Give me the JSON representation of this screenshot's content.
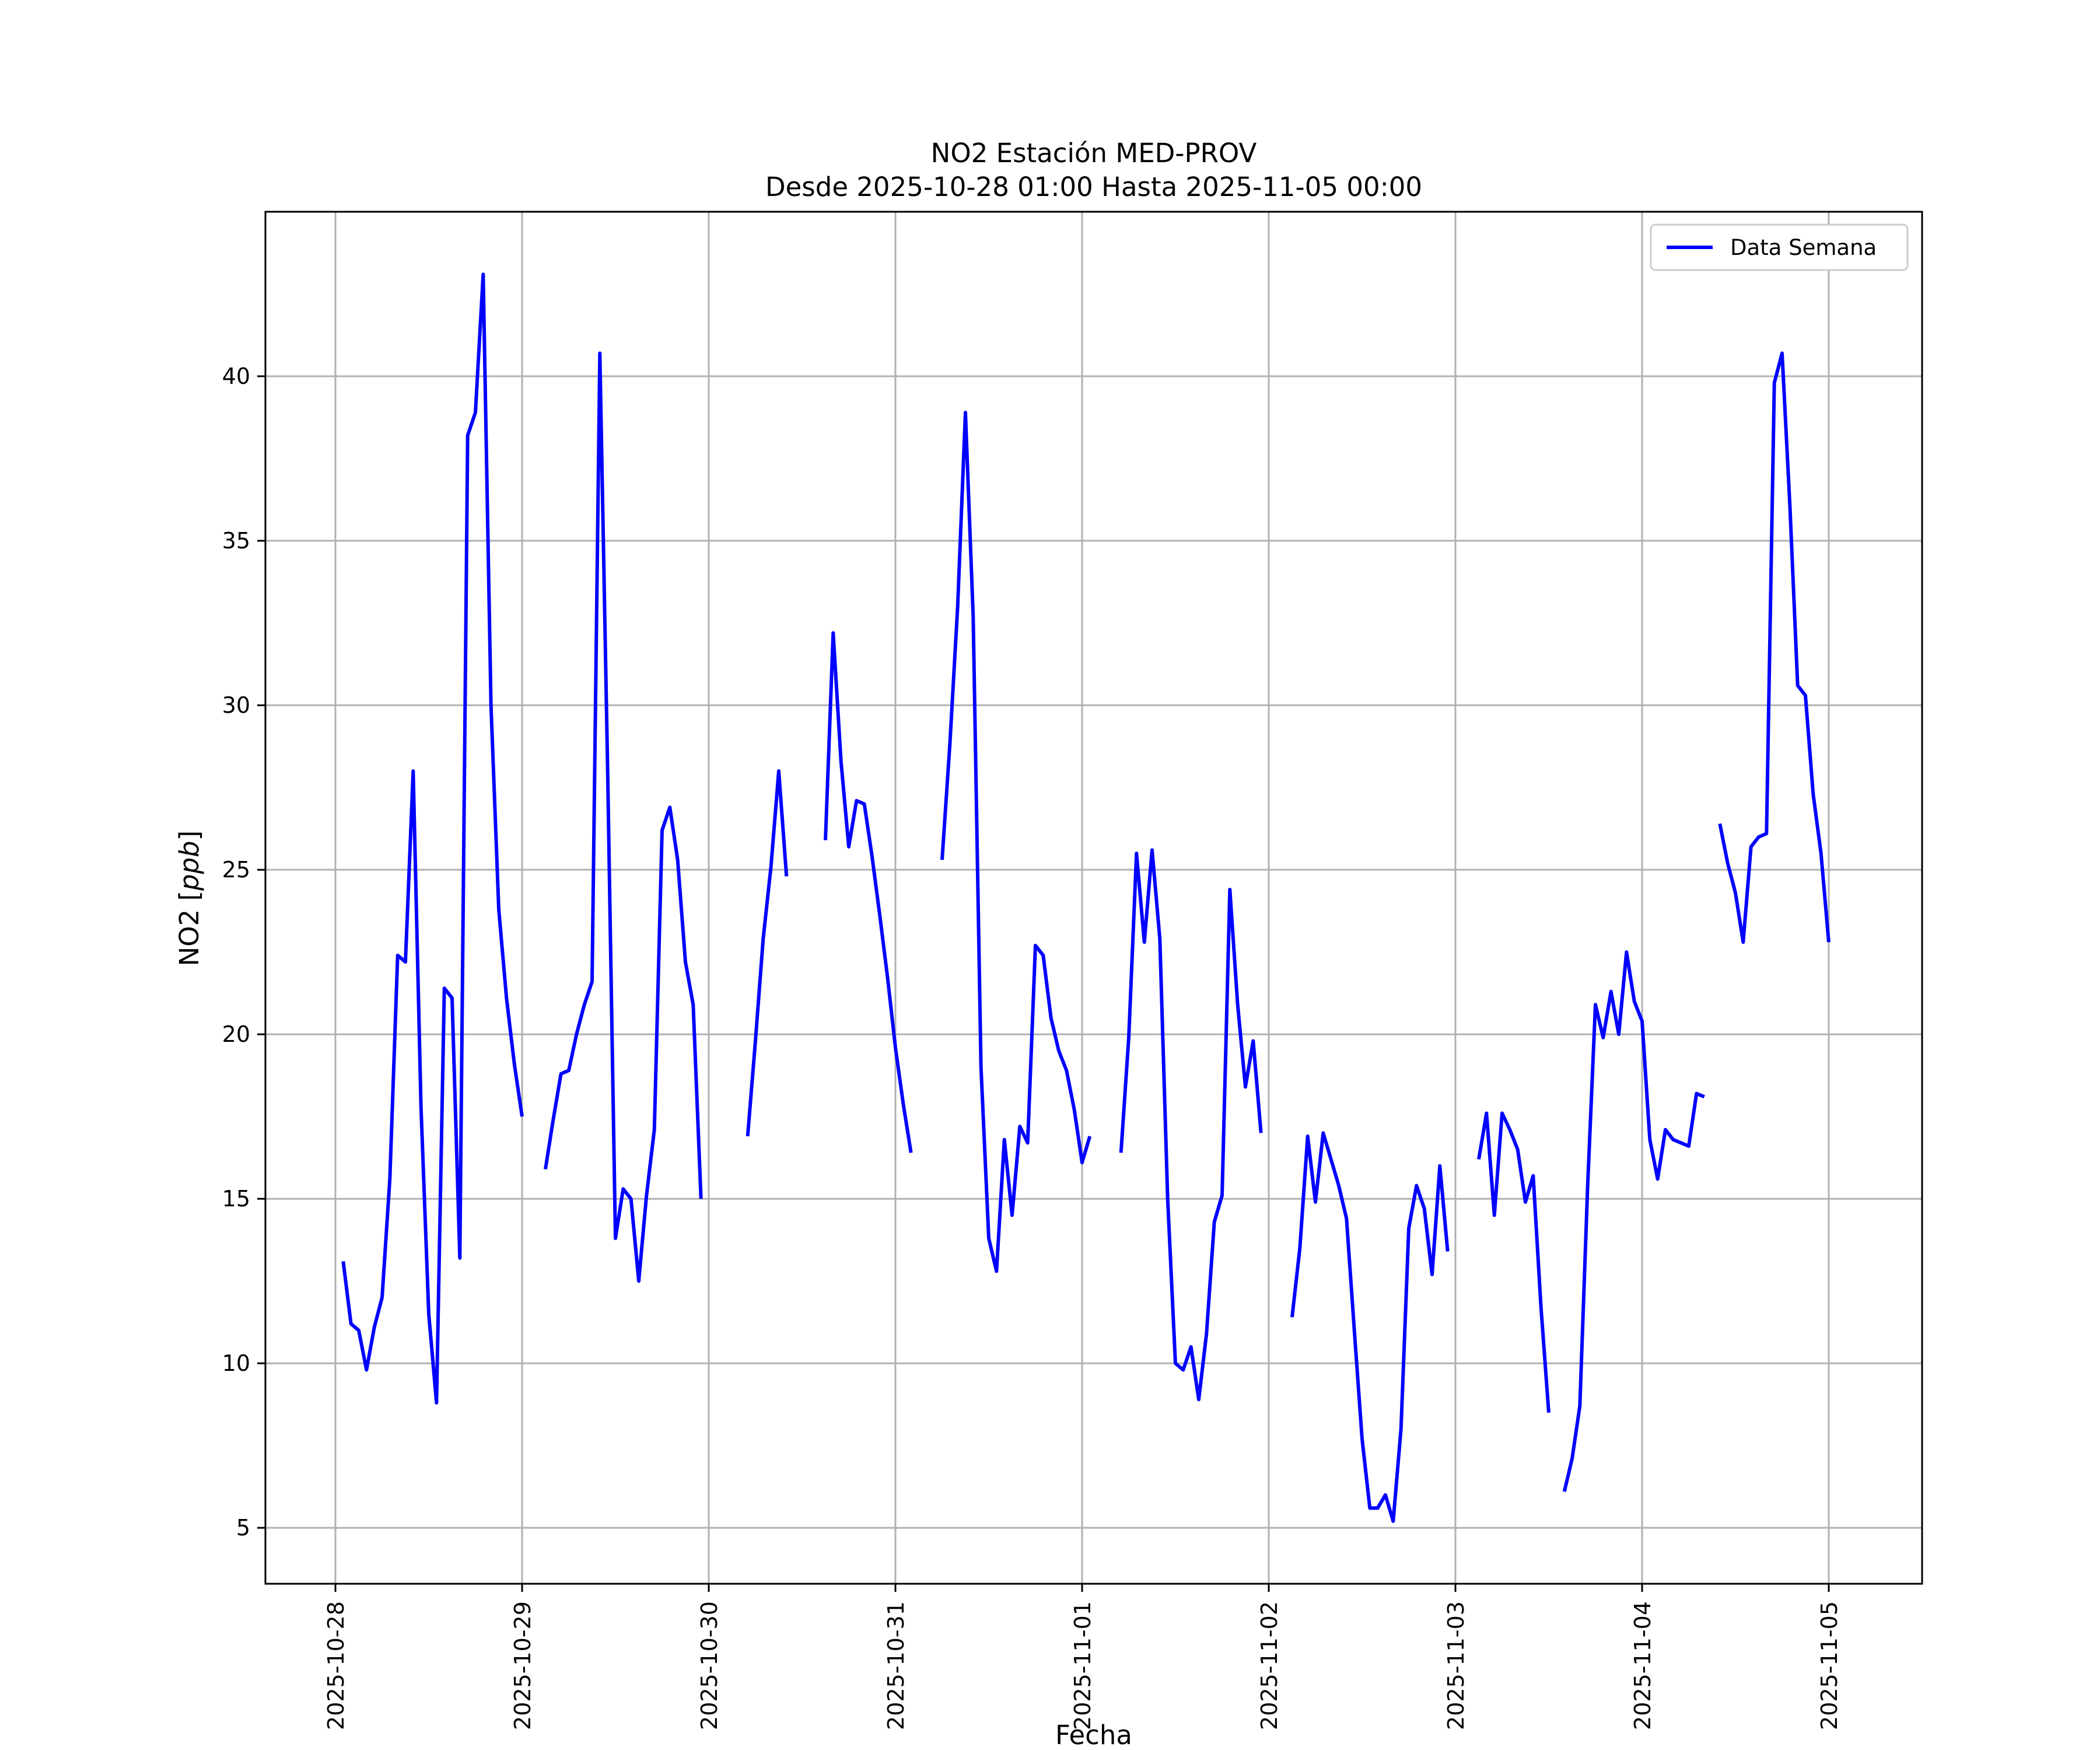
{
  "chart_data": {
    "type": "line",
    "title": "NO2 Estación MED-PROV",
    "subtitle": "Desde 2025-10-28 01:00 Hasta 2025-11-05 00:00",
    "xlabel": "Fecha",
    "ylabel_text": "NO2 [",
    "ylabel_unit": "ppb",
    "ylabel_close": "]",
    "x_ticks": [
      "2025-10-28",
      "2025-10-29",
      "2025-10-30",
      "2025-10-31",
      "2025-11-01",
      "2025-11-02",
      "2025-11-03",
      "2025-11-04",
      "2025-11-05"
    ],
    "y_ticks": [
      5,
      10,
      15,
      20,
      25,
      30,
      35,
      40
    ],
    "xlim": [
      "2025-10-27 15:00",
      "2025-11-05 12:00"
    ],
    "ylim": [
      3.3,
      45.0
    ],
    "grid": true,
    "legend_position": "top-right",
    "series": [
      {
        "name": "Data Semana",
        "color": "#0000ff",
        "segments": [
          [
            [
              "2025-10-28 01:00",
              13.1
            ],
            [
              "2025-10-28 02:00",
              11.2
            ],
            [
              "2025-10-28 03:00",
              11.0
            ],
            [
              "2025-10-28 04:00",
              9.8
            ],
            [
              "2025-10-28 05:00",
              11.1
            ],
            [
              "2025-10-28 06:00",
              12.0
            ],
            [
              "2025-10-28 07:00",
              15.6
            ],
            [
              "2025-10-28 08:00",
              22.4
            ],
            [
              "2025-10-28 09:00",
              22.2
            ],
            [
              "2025-10-28 10:00",
              28.0
            ],
            [
              "2025-10-28 11:00",
              17.8
            ],
            [
              "2025-10-28 12:00",
              11.5
            ],
            [
              "2025-10-28 13:00",
              8.8
            ],
            [
              "2025-10-28 14:00",
              21.4
            ],
            [
              "2025-10-28 15:00",
              21.1
            ],
            [
              "2025-10-28 16:00",
              13.2
            ],
            [
              "2025-10-28 17:00",
              38.2
            ],
            [
              "2025-10-28 18:00",
              38.9
            ],
            [
              "2025-10-28 19:00",
              43.1
            ],
            [
              "2025-10-28 20:00",
              30.0
            ],
            [
              "2025-10-28 21:00",
              23.8
            ],
            [
              "2025-10-28 22:00",
              21.1
            ],
            [
              "2025-10-28 23:00",
              19.1
            ],
            [
              "2025-10-29 00:00",
              17.5
            ]
          ],
          [
            [
              "2025-10-29 03:00",
              15.9
            ],
            [
              "2025-10-29 04:00",
              17.4
            ],
            [
              "2025-10-29 05:00",
              18.8
            ],
            [
              "2025-10-29 06:00",
              18.9
            ],
            [
              "2025-10-29 07:00",
              20.0
            ],
            [
              "2025-10-29 08:00",
              20.9
            ],
            [
              "2025-10-29 09:00",
              21.6
            ],
            [
              "2025-10-29 10:00",
              40.7
            ],
            [
              "2025-10-29 11:00",
              28.0
            ],
            [
              "2025-10-29 12:00",
              13.8
            ],
            [
              "2025-10-29 13:00",
              15.3
            ],
            [
              "2025-10-29 14:00",
              15.0
            ],
            [
              "2025-10-29 15:00",
              12.5
            ],
            [
              "2025-10-29 16:00",
              15.1
            ],
            [
              "2025-10-29 17:00",
              17.1
            ],
            [
              "2025-10-29 18:00",
              26.2
            ],
            [
              "2025-10-29 19:00",
              26.9
            ],
            [
              "2025-10-29 20:00",
              25.3
            ],
            [
              "2025-10-29 21:00",
              22.2
            ],
            [
              "2025-10-29 22:00",
              20.9
            ],
            [
              "2025-10-29 23:00",
              15.0
            ]
          ],
          [
            [
              "2025-10-30 05:00",
              16.9
            ],
            [
              "2025-10-30 06:00",
              19.8
            ],
            [
              "2025-10-30 07:00",
              22.9
            ],
            [
              "2025-10-30 08:00",
              25.1
            ],
            [
              "2025-10-30 09:00",
              28.0
            ],
            [
              "2025-10-30 10:00",
              24.8
            ]
          ],
          [
            [
              "2025-10-30 15:00",
              25.9
            ],
            [
              "2025-10-30 16:00",
              32.2
            ],
            [
              "2025-10-30 17:00",
              28.3
            ],
            [
              "2025-10-30 18:00",
              25.7
            ],
            [
              "2025-10-30 19:00",
              27.1
            ],
            [
              "2025-10-30 20:00",
              27.0
            ],
            [
              "2025-10-30 21:00",
              25.4
            ],
            [
              "2025-10-30 22:00",
              23.6
            ],
            [
              "2025-10-30 23:00",
              21.7
            ],
            [
              "2025-10-31 00:00",
              19.6
            ],
            [
              "2025-10-31 01:00",
              17.9
            ],
            [
              "2025-10-31 02:00",
              16.4
            ]
          ],
          [
            [
              "2025-10-31 06:00",
              25.3
            ],
            [
              "2025-10-31 07:00",
              28.8
            ],
            [
              "2025-10-31 08:00",
              33.0
            ],
            [
              "2025-10-31 09:00",
              38.9
            ],
            [
              "2025-10-31 10:00",
              32.7
            ],
            [
              "2025-10-31 11:00",
              19.0
            ],
            [
              "2025-10-31 12:00",
              13.8
            ],
            [
              "2025-10-31 13:00",
              12.8
            ],
            [
              "2025-10-31 14:00",
              16.8
            ],
            [
              "2025-10-31 15:00",
              14.5
            ],
            [
              "2025-10-31 16:00",
              17.2
            ],
            [
              "2025-10-31 17:00",
              16.7
            ],
            [
              "2025-10-31 18:00",
              22.7
            ],
            [
              "2025-10-31 19:00",
              22.4
            ],
            [
              "2025-10-31 20:00",
              20.5
            ],
            [
              "2025-10-31 21:00",
              19.5
            ],
            [
              "2025-10-31 22:00",
              18.9
            ],
            [
              "2025-10-31 23:00",
              17.7
            ],
            [
              "2025-11-01 00:00",
              16.1
            ],
            [
              "2025-11-01 01:00",
              16.9
            ]
          ],
          [
            [
              "2025-11-01 05:00",
              16.4
            ],
            [
              "2025-11-01 06:00",
              19.9
            ],
            [
              "2025-11-01 07:00",
              25.5
            ],
            [
              "2025-11-01 08:00",
              22.8
            ],
            [
              "2025-11-01 09:00",
              25.6
            ],
            [
              "2025-11-01 10:00",
              22.9
            ],
            [
              "2025-11-01 11:00",
              15.0
            ],
            [
              "2025-11-01 12:00",
              10.0
            ],
            [
              "2025-11-01 13:00",
              9.8
            ],
            [
              "2025-11-01 14:00",
              10.5
            ],
            [
              "2025-11-01 15:00",
              8.9
            ],
            [
              "2025-11-01 16:00",
              10.9
            ],
            [
              "2025-11-01 17:00",
              14.3
            ],
            [
              "2025-11-01 18:00",
              15.1
            ],
            [
              "2025-11-01 19:00",
              24.4
            ],
            [
              "2025-11-01 20:00",
              20.9
            ],
            [
              "2025-11-01 21:00",
              18.4
            ],
            [
              "2025-11-01 22:00",
              19.8
            ],
            [
              "2025-11-01 23:00",
              17.0
            ]
          ],
          [
            [
              "2025-11-02 03:00",
              11.4
            ],
            [
              "2025-11-02 04:00",
              13.5
            ],
            [
              "2025-11-02 05:00",
              16.9
            ],
            [
              "2025-11-02 06:00",
              14.9
            ],
            [
              "2025-11-02 07:00",
              17.0
            ],
            [
              "2025-11-02 08:00",
              16.2
            ],
            [
              "2025-11-02 09:00",
              15.4
            ],
            [
              "2025-11-02 10:00",
              14.4
            ],
            [
              "2025-11-02 11:00",
              11.0
            ],
            [
              "2025-11-02 12:00",
              7.7
            ],
            [
              "2025-11-02 13:00",
              5.6
            ],
            [
              "2025-11-02 14:00",
              5.6
            ],
            [
              "2025-11-02 15:00",
              6.0
            ],
            [
              "2025-11-02 16:00",
              5.2
            ],
            [
              "2025-11-02 17:00",
              8.0
            ],
            [
              "2025-11-02 18:00",
              14.1
            ],
            [
              "2025-11-02 19:00",
              15.4
            ],
            [
              "2025-11-02 20:00",
              14.7
            ],
            [
              "2025-11-02 21:00",
              12.7
            ],
            [
              "2025-11-02 22:00",
              16.0
            ],
            [
              "2025-11-02 23:00",
              13.4
            ]
          ],
          [
            [
              "2025-11-03 03:00",
              16.2
            ],
            [
              "2025-11-03 04:00",
              17.6
            ],
            [
              "2025-11-03 05:00",
              14.5
            ],
            [
              "2025-11-03 06:00",
              17.6
            ],
            [
              "2025-11-03 07:00",
              17.1
            ],
            [
              "2025-11-03 08:00",
              16.5
            ],
            [
              "2025-11-03 09:00",
              14.9
            ],
            [
              "2025-11-03 10:00",
              15.7
            ],
            [
              "2025-11-03 11:00",
              11.7
            ],
            [
              "2025-11-03 12:00",
              8.5
            ]
          ],
          [
            [
              "2025-11-03 14:00",
              6.1
            ],
            [
              "2025-11-03 15:00",
              7.1
            ],
            [
              "2025-11-03 16:00",
              8.7
            ],
            [
              "2025-11-03 17:00",
              15.4
            ],
            [
              "2025-11-03 18:00",
              20.9
            ],
            [
              "2025-11-03 19:00",
              19.9
            ],
            [
              "2025-11-03 20:00",
              21.3
            ],
            [
              "2025-11-03 21:00",
              20.0
            ],
            [
              "2025-11-03 22:00",
              22.5
            ],
            [
              "2025-11-03 23:00",
              21.0
            ],
            [
              "2025-11-04 00:00",
              20.4
            ],
            [
              "2025-11-04 01:00",
              16.8
            ],
            [
              "2025-11-04 02:00",
              15.6
            ],
            [
              "2025-11-04 03:00",
              17.1
            ],
            [
              "2025-11-04 04:00",
              16.8
            ],
            [
              "2025-11-04 05:00",
              16.7
            ],
            [
              "2025-11-04 06:00",
              16.6
            ],
            [
              "2025-11-04 07:00",
              18.2
            ],
            [
              "2025-11-04 08:00",
              18.1
            ]
          ],
          [
            [
              "2025-11-04 10:00",
              26.4
            ],
            [
              "2025-11-04 11:00",
              25.2
            ],
            [
              "2025-11-04 12:00",
              24.3
            ],
            [
              "2025-11-04 13:00",
              22.8
            ],
            [
              "2025-11-04 14:00",
              25.7
            ],
            [
              "2025-11-04 15:00",
              26.0
            ],
            [
              "2025-11-04 16:00",
              26.1
            ],
            [
              "2025-11-04 17:00",
              39.8
            ],
            [
              "2025-11-04 18:00",
              40.7
            ],
            [
              "2025-11-04 19:00",
              36.1
            ],
            [
              "2025-11-04 20:00",
              30.6
            ],
            [
              "2025-11-04 21:00",
              30.3
            ],
            [
              "2025-11-04 22:00",
              27.3
            ],
            [
              "2025-11-04 23:00",
              25.5
            ],
            [
              "2025-11-05 00:00",
              22.8
            ]
          ]
        ]
      }
    ]
  }
}
